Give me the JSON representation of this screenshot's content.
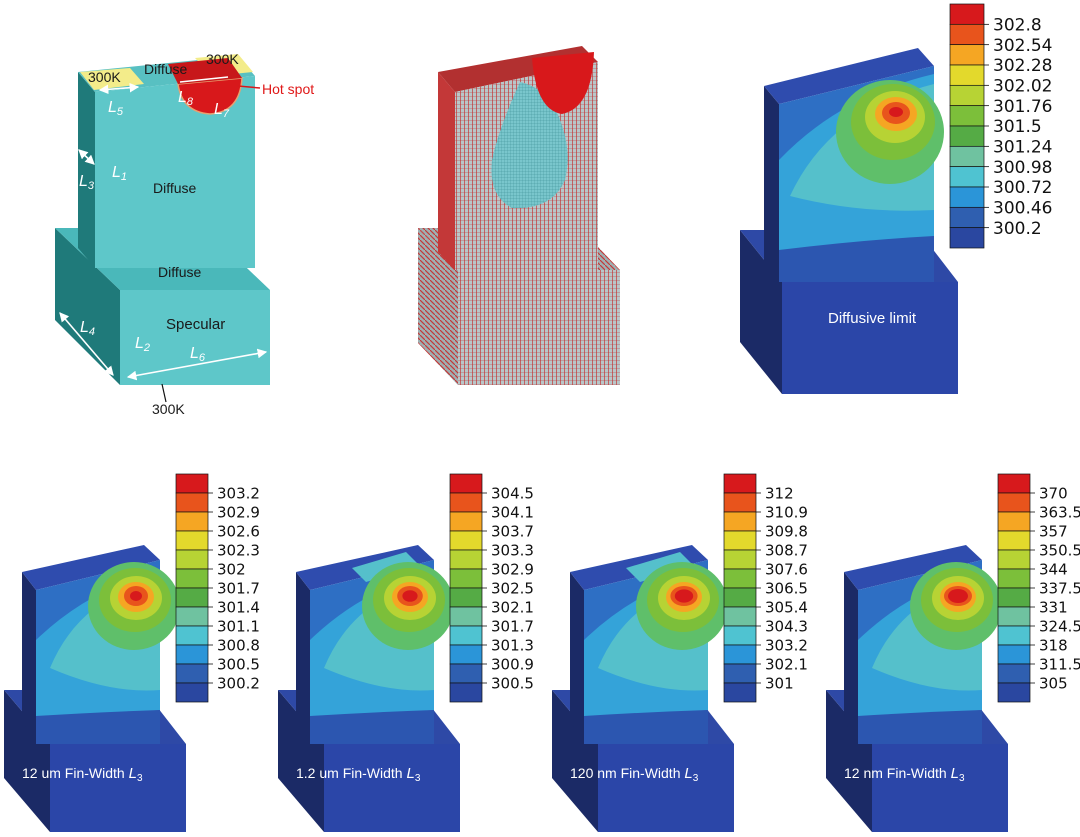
{
  "schematic": {
    "bc_top_left": "300K",
    "bc_top_right": "300K",
    "bc_bottom": "300K",
    "label_top": "Diffuse",
    "label_face": "Diffuse",
    "label_step": "Diffuse",
    "label_base": "Specular",
    "hot_spot": "Hot spot",
    "dims": [
      "L1",
      "L2",
      "L3",
      "L4",
      "L5",
      "L6",
      "L7",
      "L8"
    ]
  },
  "diffusive": {
    "caption": "Diffusive limit",
    "legend": [
      "302.8",
      "302.54",
      "302.28",
      "302.02",
      "301.76",
      "301.5",
      "301.24",
      "300.98",
      "300.72",
      "300.46",
      "300.2"
    ]
  },
  "panels": [
    {
      "caption": "12 um Fin-Width ",
      "legend": [
        "303.2",
        "302.9",
        "302.6",
        "302.3",
        "302",
        "301.7",
        "301.4",
        "301.1",
        "300.8",
        "300.5",
        "300.2"
      ]
    },
    {
      "caption": "1.2 um Fin-Width ",
      "legend": [
        "304.5",
        "304.1",
        "303.7",
        "303.3",
        "302.9",
        "302.5",
        "302.1",
        "301.7",
        "301.3",
        "300.9",
        "300.5"
      ]
    },
    {
      "caption": "120 nm Fin-Width ",
      "legend": [
        "312",
        "310.9",
        "309.8",
        "308.7",
        "307.6",
        "306.5",
        "305.4",
        "304.3",
        "303.2",
        "302.1",
        "301"
      ]
    },
    {
      "caption": "12 nm Fin-Width ",
      "legend": [
        "370",
        "363.5",
        "357",
        "350.5",
        "344",
        "337.5",
        "331",
        "324.5",
        "318",
        "311.5",
        "305"
      ]
    }
  ],
  "caption_symbol": "L3",
  "colors": {
    "scale": [
      "#d7191c",
      "#e8541c",
      "#f5a623",
      "#e3d92c",
      "#b7d334",
      "#7cbf3a",
      "#55ab45",
      "#6fc2a0",
      "#4fc3d1",
      "#2b95d8",
      "#2f5fb0",
      "#2a47a0"
    ],
    "schematic_face": "#5ec7c9",
    "schematic_dark": "#1f7a7a",
    "yellow": "#f3ec8a",
    "hot": "#d8181b",
    "mesh": "#c33838"
  }
}
